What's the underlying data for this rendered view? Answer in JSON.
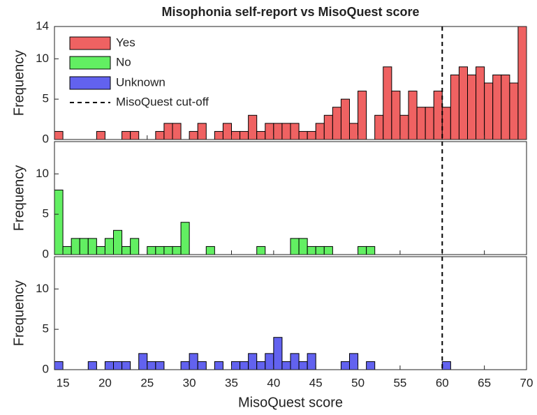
{
  "chart_data": {
    "type": "histogram",
    "title": "Misophonia self-report vs MisoQuest score",
    "xlabel": "MisoQuest score",
    "ylabel": "Frequency",
    "bins": [
      14,
      15,
      16,
      17,
      18,
      19,
      20,
      21,
      22,
      23,
      24,
      25,
      26,
      27,
      28,
      29,
      30,
      31,
      32,
      33,
      34,
      35,
      36,
      37,
      38,
      39,
      40,
      41,
      42,
      43,
      44,
      45,
      46,
      47,
      48,
      49,
      50,
      51,
      52,
      53,
      54,
      55,
      56,
      57,
      58,
      59,
      60,
      61,
      62,
      63,
      64,
      65,
      66,
      67,
      68,
      69,
      70
    ],
    "xlim": [
      14,
      70
    ],
    "xticks": [
      15,
      20,
      25,
      30,
      35,
      40,
      45,
      50,
      55,
      60,
      65,
      70
    ],
    "ylim": [
      0,
      14
    ],
    "cutoff": {
      "value": 60,
      "label": "MisoQuest cut-off"
    },
    "series": [
      {
        "name": "Yes",
        "color": "#ef6262",
        "yticks": [
          0,
          5,
          10,
          14
        ],
        "values": [
          1,
          0,
          0,
          0,
          0,
          1,
          0,
          0,
          1,
          1,
          0,
          0,
          1,
          2,
          2,
          0,
          1,
          2,
          0,
          1,
          2,
          1,
          1,
          3,
          1,
          2,
          2,
          2,
          2,
          1,
          1,
          2,
          3,
          4,
          5,
          2,
          6,
          0,
          3,
          9,
          6,
          3,
          6,
          4,
          4,
          6,
          4,
          8,
          9,
          8,
          9,
          7,
          8,
          8,
          7,
          14
        ]
      },
      {
        "name": "No",
        "color": "#62ef62",
        "yticks": [
          0,
          5,
          10
        ],
        "values": [
          8,
          1,
          2,
          2,
          2,
          1,
          2,
          3,
          1,
          2,
          0,
          1,
          1,
          1,
          1,
          4,
          0,
          0,
          1,
          0,
          0,
          0,
          0,
          0,
          1,
          0,
          0,
          0,
          2,
          2,
          1,
          1,
          1,
          0,
          0,
          0,
          1,
          1,
          0,
          0,
          0,
          0,
          0,
          0,
          0,
          0,
          0,
          0,
          0,
          0,
          0,
          0,
          0,
          0,
          0,
          0
        ]
      },
      {
        "name": "Unknown",
        "color": "#6262ef",
        "yticks": [
          0,
          5,
          10
        ],
        "values": [
          1,
          0,
          0,
          0,
          1,
          0,
          1,
          1,
          1,
          0,
          2,
          1,
          1,
          0,
          0,
          1,
          2,
          1,
          0,
          1,
          0,
          1,
          1,
          2,
          1,
          2,
          4,
          1,
          2,
          1,
          2,
          0,
          0,
          0,
          1,
          2,
          0,
          1,
          0,
          0,
          0,
          0,
          0,
          0,
          0,
          0,
          1,
          0,
          0,
          0,
          0,
          0,
          0,
          0,
          0,
          0
        ]
      }
    ]
  }
}
